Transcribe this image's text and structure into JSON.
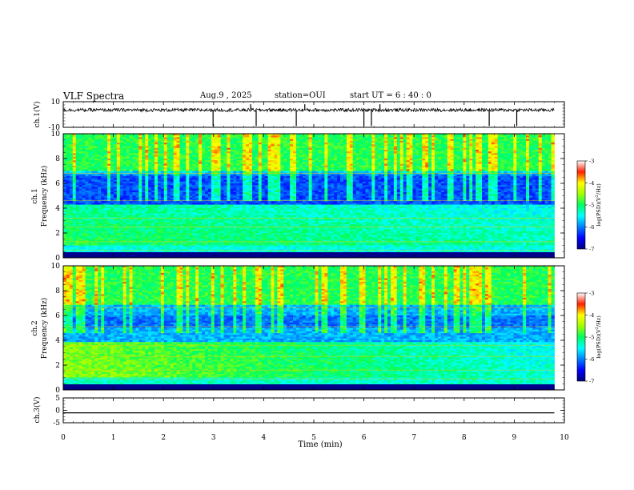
{
  "header": {
    "title": "VLF Spectra",
    "date": "Aug.9 , 2025",
    "station": "station=OUI",
    "start_ut": "start UT = 6 : 40 : 0"
  },
  "chart_data": [
    {
      "id": "ch1-waveform",
      "type": "line",
      "ylabel": "ch.1(V)",
      "ylim": [
        -10,
        10
      ],
      "yticks": [
        10,
        -10
      ],
      "xlim": [
        0,
        10
      ],
      "baseline": 3.5,
      "spikes_min": [
        2.99,
        3.74,
        3.85,
        4.65,
        4.82,
        6.0,
        6.15,
        6.32,
        8.5,
        9.05
      ],
      "color": "#000000"
    },
    {
      "id": "ch1-spectrogram",
      "type": "heatmap",
      "ylabel": "ch.1\nFrequency (kHz)",
      "ylim": [
        0,
        10
      ],
      "yticks": [
        0,
        2,
        4,
        6,
        8,
        10
      ],
      "xlim": [
        0,
        9.8
      ],
      "colorbar": {
        "label": "log(PSD)(V²/Hz)",
        "range": [
          -7,
          -3
        ],
        "ticks": [
          -3,
          -4,
          -5,
          -6,
          -7
        ]
      }
    },
    {
      "id": "ch2-spectrogram",
      "type": "heatmap",
      "ylabel": "ch.2\nFrequency (kHz)",
      "ylim": [
        0,
        10
      ],
      "yticks": [
        0,
        2,
        4,
        6,
        8,
        10
      ],
      "xlim": [
        0,
        9.8
      ],
      "colorbar": {
        "label": "log(PSD)(V²/Hz)",
        "range": [
          -7,
          -3
        ],
        "ticks": [
          -3,
          -4,
          -5,
          -6,
          -7
        ]
      }
    },
    {
      "id": "ch3-waveform",
      "type": "line",
      "ylabel": "ch.3(V)",
      "ylim": [
        -5,
        5
      ],
      "yticks": [
        5,
        0,
        -5
      ],
      "xlim": [
        0,
        10
      ],
      "values_const": -1.0,
      "color": "#000000"
    }
  ],
  "xaxis": {
    "label": "Time (min)",
    "ticks": [
      0,
      1,
      2,
      3,
      4,
      5,
      6,
      7,
      8,
      9,
      10
    ],
    "range": [
      0,
      10
    ]
  }
}
